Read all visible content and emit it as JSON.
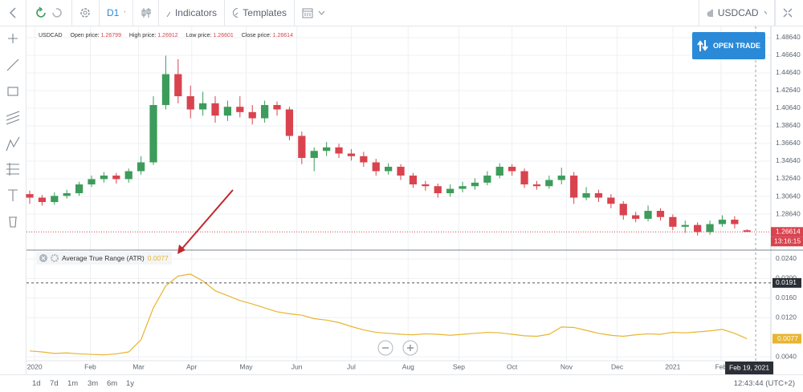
{
  "toolbar": {
    "timeframe": "D1",
    "indicators": "Indicators",
    "templates": "Templates",
    "symbol": "USDCAD"
  },
  "open_trade": "OPEN TRADE",
  "range_buttons": [
    "1d",
    "7d",
    "1m",
    "3m",
    "6m",
    "1y"
  ],
  "clock": "12:43:44 (UTC+2)",
  "chart_data": [
    {
      "type": "candlestick",
      "symbol": "USDCAD",
      "info_labels": [
        "Open price:",
        "High price:",
        "Low price:",
        "Close price:"
      ],
      "open": [
        1.309,
        1.305,
        1.3,
        1.307,
        1.31,
        1.32,
        1.326,
        1.33,
        1.326,
        1.335,
        1.345,
        1.41,
        1.445,
        1.42,
        1.405,
        1.412,
        1.398,
        1.408,
        1.402,
        1.395,
        1.41,
        1.405,
        1.375,
        1.35,
        1.358,
        1.362,
        1.355,
        1.352,
        1.345,
        1.335,
        1.34,
        1.33,
        1.32,
        1.318,
        1.31,
        1.315,
        1.318,
        1.322,
        1.33,
        1.34,
        1.335,
        1.32,
        1.318,
        1.325,
        1.33,
        1.305,
        1.31,
        1.305,
        1.298,
        1.285,
        1.281,
        1.29,
        1.283,
        1.272,
        1.274,
        1.266,
        1.275,
        1.28,
        1.26799
      ],
      "high": [
        1.313,
        1.308,
        1.311,
        1.314,
        1.323,
        1.33,
        1.334,
        1.333,
        1.338,
        1.352,
        1.42,
        1.466,
        1.462,
        1.432,
        1.425,
        1.42,
        1.415,
        1.42,
        1.41,
        1.415,
        1.414,
        1.408,
        1.38,
        1.362,
        1.368,
        1.366,
        1.36,
        1.357,
        1.349,
        1.344,
        1.343,
        1.333,
        1.324,
        1.321,
        1.32,
        1.323,
        1.327,
        1.335,
        1.344,
        1.343,
        1.338,
        1.324,
        1.33,
        1.339,
        1.334,
        1.317,
        1.314,
        1.309,
        1.301,
        1.289,
        1.296,
        1.293,
        1.286,
        1.279,
        1.277,
        1.279,
        1.285,
        1.284,
        1.26912
      ],
      "low": [
        1.298,
        1.296,
        1.297,
        1.304,
        1.307,
        1.317,
        1.322,
        1.321,
        1.322,
        1.331,
        1.342,
        1.405,
        1.412,
        1.395,
        1.398,
        1.39,
        1.392,
        1.396,
        1.388,
        1.39,
        1.398,
        1.37,
        1.343,
        1.335,
        1.352,
        1.35,
        1.347,
        1.34,
        1.33,
        1.331,
        1.325,
        1.316,
        1.313,
        1.305,
        1.306,
        1.311,
        1.314,
        1.319,
        1.327,
        1.33,
        1.316,
        1.314,
        1.315,
        1.32,
        1.298,
        1.302,
        1.3,
        1.293,
        1.28,
        1.277,
        1.278,
        1.279,
        1.268,
        1.265,
        1.262,
        1.263,
        1.272,
        1.27,
        1.26601
      ],
      "close": [
        1.305,
        1.3,
        1.307,
        1.31,
        1.32,
        1.326,
        1.33,
        1.326,
        1.335,
        1.345,
        1.41,
        1.445,
        1.42,
        1.405,
        1.412,
        1.398,
        1.408,
        1.402,
        1.395,
        1.41,
        1.405,
        1.375,
        1.35,
        1.358,
        1.362,
        1.355,
        1.352,
        1.345,
        1.335,
        1.34,
        1.33,
        1.32,
        1.318,
        1.31,
        1.315,
        1.318,
        1.322,
        1.33,
        1.34,
        1.335,
        1.32,
        1.318,
        1.325,
        1.33,
        1.305,
        1.31,
        1.305,
        1.298,
        1.285,
        1.281,
        1.29,
        1.283,
        1.272,
        1.274,
        1.266,
        1.275,
        1.28,
        1.275,
        1.26614
      ],
      "up_color": "#3d9c5b",
      "down_color": "#d9434e",
      "xlim": [
        -0.26,
        59.8
      ],
      "xticks": [
        {
          "value": 0.4,
          "label": "2020"
        },
        {
          "value": 4.9,
          "label": "Feb"
        },
        {
          "value": 8.8,
          "label": "Mar"
        },
        {
          "value": 13.1,
          "label": "Apr"
        },
        {
          "value": 17.5,
          "label": "May"
        },
        {
          "value": 21.6,
          "label": "Jun"
        },
        {
          "value": 26.0,
          "label": "Jul"
        },
        {
          "value": 30.6,
          "label": "Aug"
        },
        {
          "value": 34.7,
          "label": "Sep"
        },
        {
          "value": 39.0,
          "label": "Oct"
        },
        {
          "value": 43.4,
          "label": "Nov"
        },
        {
          "value": 47.5,
          "label": "Dec"
        },
        {
          "value": 52.0,
          "label": "2021"
        },
        {
          "value": 55.9,
          "label": "Feb"
        }
      ],
      "ylim": [
        1.2455,
        1.4991
      ],
      "yticks": [
        {
          "value": 1.2864,
          "label": "1.28640"
        },
        {
          "value": 1.3064,
          "label": "1.30640"
        },
        {
          "value": 1.3264,
          "label": "1.32640"
        },
        {
          "value": 1.3464,
          "label": "1.34640"
        },
        {
          "value": 1.3664,
          "label": "1.36640"
        },
        {
          "value": 1.3864,
          "label": "1.38640"
        },
        {
          "value": 1.4064,
          "label": "1.40640"
        },
        {
          "value": 1.4264,
          "label": "1.42640"
        },
        {
          "value": 1.4464,
          "label": "1.44640"
        },
        {
          "value": 1.4664,
          "label": "1.46640"
        },
        {
          "value": 1.4864,
          "label": "1.48640"
        }
      ],
      "grid": true,
      "countdown": "13:16:15",
      "crosshair_x": 58.7,
      "crosshair_label": "Feb 19, 2021"
    },
    {
      "type": "line",
      "title": "Average True Range (ATR)",
      "color": "#e8b52e",
      "values": [
        0.0052,
        0.005,
        0.0047,
        0.0048,
        0.0046,
        0.0045,
        0.0044,
        0.0046,
        0.005,
        0.0075,
        0.014,
        0.0185,
        0.0205,
        0.0209,
        0.0195,
        0.0175,
        0.0165,
        0.0155,
        0.0148,
        0.014,
        0.0132,
        0.0128,
        0.0125,
        0.0118,
        0.0115,
        0.011,
        0.0102,
        0.0095,
        0.009,
        0.0088,
        0.0086,
        0.0085,
        0.0087,
        0.0086,
        0.0084,
        0.0086,
        0.0088,
        0.009,
        0.0089,
        0.0086,
        0.0083,
        0.0082,
        0.0086,
        0.0101,
        0.01,
        0.0094,
        0.0088,
        0.0084,
        0.0082,
        0.0085,
        0.0087,
        0.0086,
        0.009,
        0.0089,
        0.0091,
        0.0093,
        0.0096,
        0.0088,
        0.0077
      ],
      "ylim": [
        0.0032,
        0.0258
      ],
      "yticks": [
        {
          "value": 0.004,
          "label": "0.0040"
        },
        {
          "value": 0.012,
          "label": "0.0120"
        },
        {
          "value": 0.016,
          "label": "0.0160"
        },
        {
          "value": 0.02,
          "label": "0.0200"
        },
        {
          "value": 0.024,
          "label": "0.0240"
        }
      ],
      "grid": true,
      "crosshair_y": 0.0191
    }
  ]
}
